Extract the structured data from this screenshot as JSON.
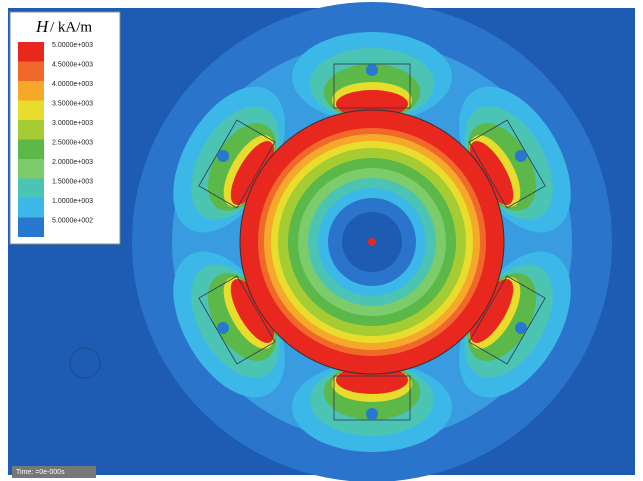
{
  "legend": {
    "title_symbol": "H",
    "title_unit": "/ kA/m",
    "entries": [
      {
        "label": "5.0000e+003",
        "color": "#e8281e"
      },
      {
        "label": "4.5000e+003",
        "color": "#f0682a"
      },
      {
        "label": "4.0000e+003",
        "color": "#f5a82a"
      },
      {
        "label": "3.5000e+003",
        "color": "#e8dc2c"
      },
      {
        "label": "3.0000e+003",
        "color": "#a6cc34"
      },
      {
        "label": "2.5000e+003",
        "color": "#5cb848"
      },
      {
        "label": "2.0000e+003",
        "color": "#7ccc6c"
      },
      {
        "label": "1.5000e+003",
        "color": "#4cc4b4"
      },
      {
        "label": "1.0000e+003",
        "color": "#3cb8e8"
      },
      {
        "label": "5.0000e+002",
        "color": "#2878d0"
      }
    ]
  },
  "status": {
    "time": "Time: =0e-000s"
  }
}
